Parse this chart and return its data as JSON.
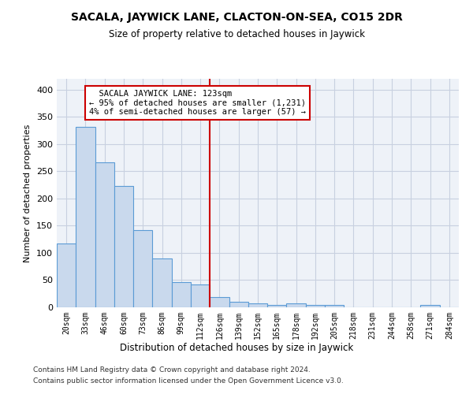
{
  "title": "SACALA, JAYWICK LANE, CLACTON-ON-SEA, CO15 2DR",
  "subtitle": "Size of property relative to detached houses in Jaywick",
  "xlabel": "Distribution of detached houses by size in Jaywick",
  "ylabel": "Number of detached properties",
  "footnote1": "Contains HM Land Registry data © Crown copyright and database right 2024.",
  "footnote2": "Contains public sector information licensed under the Open Government Licence v3.0.",
  "bar_labels": [
    "20sqm",
    "33sqm",
    "46sqm",
    "60sqm",
    "73sqm",
    "86sqm",
    "99sqm",
    "112sqm",
    "126sqm",
    "139sqm",
    "152sqm",
    "165sqm",
    "178sqm",
    "192sqm",
    "205sqm",
    "218sqm",
    "231sqm",
    "244sqm",
    "258sqm",
    "271sqm",
    "284sqm"
  ],
  "bar_values": [
    117,
    332,
    267,
    223,
    142,
    90,
    46,
    42,
    19,
    10,
    7,
    5,
    7,
    5,
    4,
    0,
    0,
    0,
    0,
    5,
    0
  ],
  "bar_color": "#c9d9ed",
  "bar_edge_color": "#5b9bd5",
  "grid_color": "#c8d0e0",
  "bg_color": "#eef2f8",
  "vline_x_index": 7.5,
  "annotation_text": "  SACALA JAYWICK LANE: 123sqm\n← 95% of detached houses are smaller (1,231)\n4% of semi-detached houses are larger (57) →",
  "annotation_box_color": "#ffffff",
  "annotation_box_edge_color": "#cc0000",
  "vline_color": "#cc0000",
  "ylim": [
    0,
    420
  ],
  "yticks": [
    0,
    50,
    100,
    150,
    200,
    250,
    300,
    350,
    400
  ]
}
